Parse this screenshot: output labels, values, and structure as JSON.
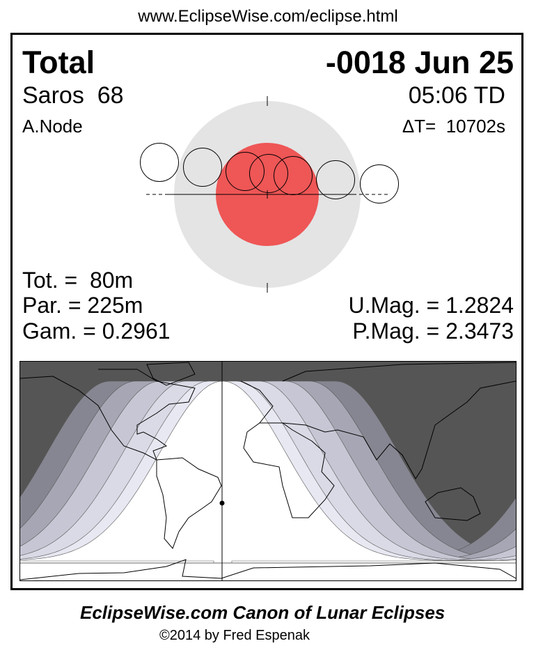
{
  "header": {
    "url": "www.EclipseWise.com/eclipse.html"
  },
  "eclipse": {
    "type": "Total",
    "date": "-0018 Jun 25",
    "saros": "Saros  68",
    "time": "05:06 TD",
    "node": "A.Node",
    "delta_t": "ΔT=  10702s",
    "totality": "Tot. =  80m",
    "partial": "Par. = 225m",
    "gamma": "Gam. = 0.2961",
    "umbral_magnitude": "U.Mag. = 1.2824",
    "penumbral_magnitude": "P.Mag. = 2.3473"
  },
  "colors": {
    "umbra": "#ef5656",
    "penumbra": "#e4e4e4",
    "night": "#555555",
    "bands": [
      "#868692",
      "#a6a6b4",
      "#c6c6d4",
      "#dadae6",
      "#e8e8f2"
    ]
  },
  "footer": {
    "title": "EclipseWise.com Canon of Lunar Eclipses",
    "copyright": "©2014 by Fred Espenak"
  }
}
